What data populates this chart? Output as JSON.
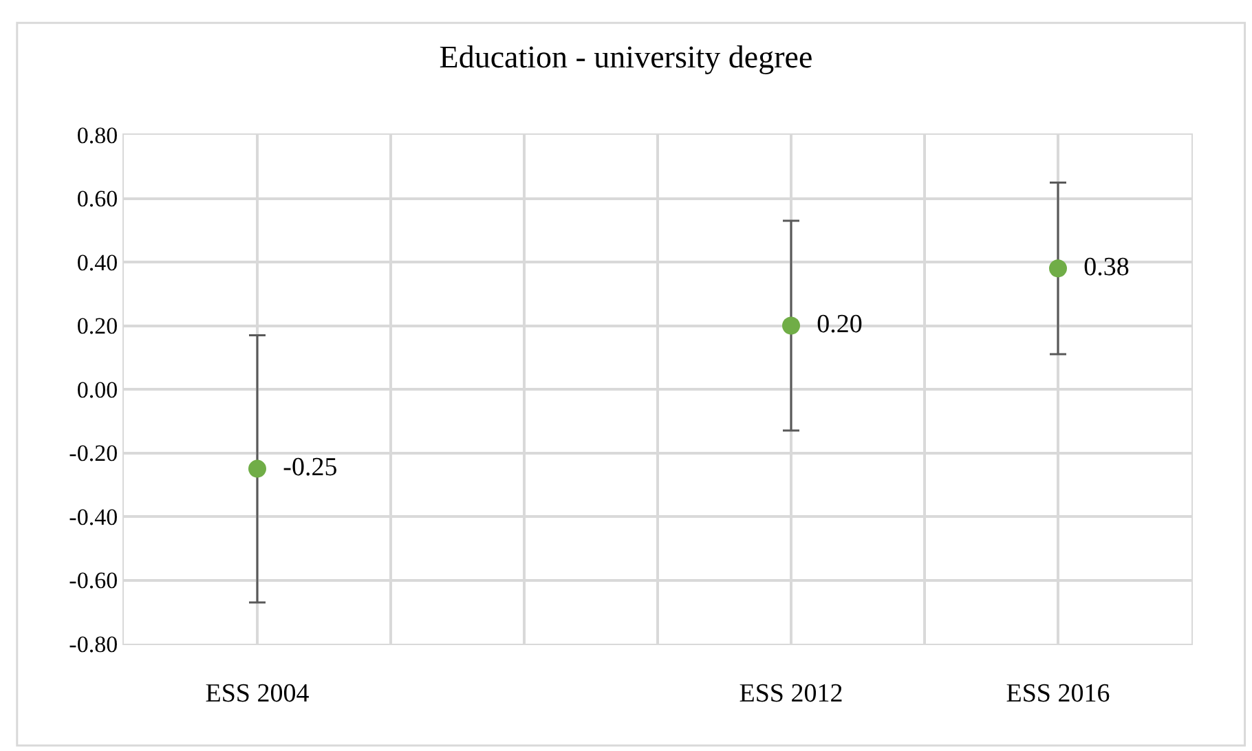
{
  "chart_data": {
    "type": "scatter",
    "title": "Education - university degree",
    "categories": [
      null,
      "ESS 2004",
      null,
      null,
      null,
      "ESS 2012",
      null,
      "ESS 2016",
      null
    ],
    "series": [
      {
        "color": "#70ad47",
        "values": [
          null,
          -0.25,
          null,
          null,
          null,
          0.2,
          null,
          0.38,
          null
        ],
        "errors": [
          null,
          0.42,
          null,
          null,
          null,
          0.33,
          null,
          0.27,
          null
        ],
        "value_labels": [
          null,
          "-0.25",
          null,
          null,
          null,
          "0.20",
          null,
          "0.38",
          null
        ]
      }
    ],
    "ylim": [
      -0.8,
      0.8
    ],
    "yticks": [
      {
        "value": -0.8,
        "label": "-0.80"
      },
      {
        "value": -0.6,
        "label": "-0.60"
      },
      {
        "value": -0.4,
        "label": "-0.40"
      },
      {
        "value": -0.2,
        "label": "-0.20"
      },
      {
        "value": 0,
        "label": "0.00"
      },
      {
        "value": 0.2,
        "label": "0.20"
      },
      {
        "value": 0.4,
        "label": "0.40"
      },
      {
        "value": 0.6,
        "label": "0.60"
      },
      {
        "value": 0.8,
        "label": "0.80"
      }
    ],
    "grid": true,
    "marker": "circle",
    "legend": false
  }
}
